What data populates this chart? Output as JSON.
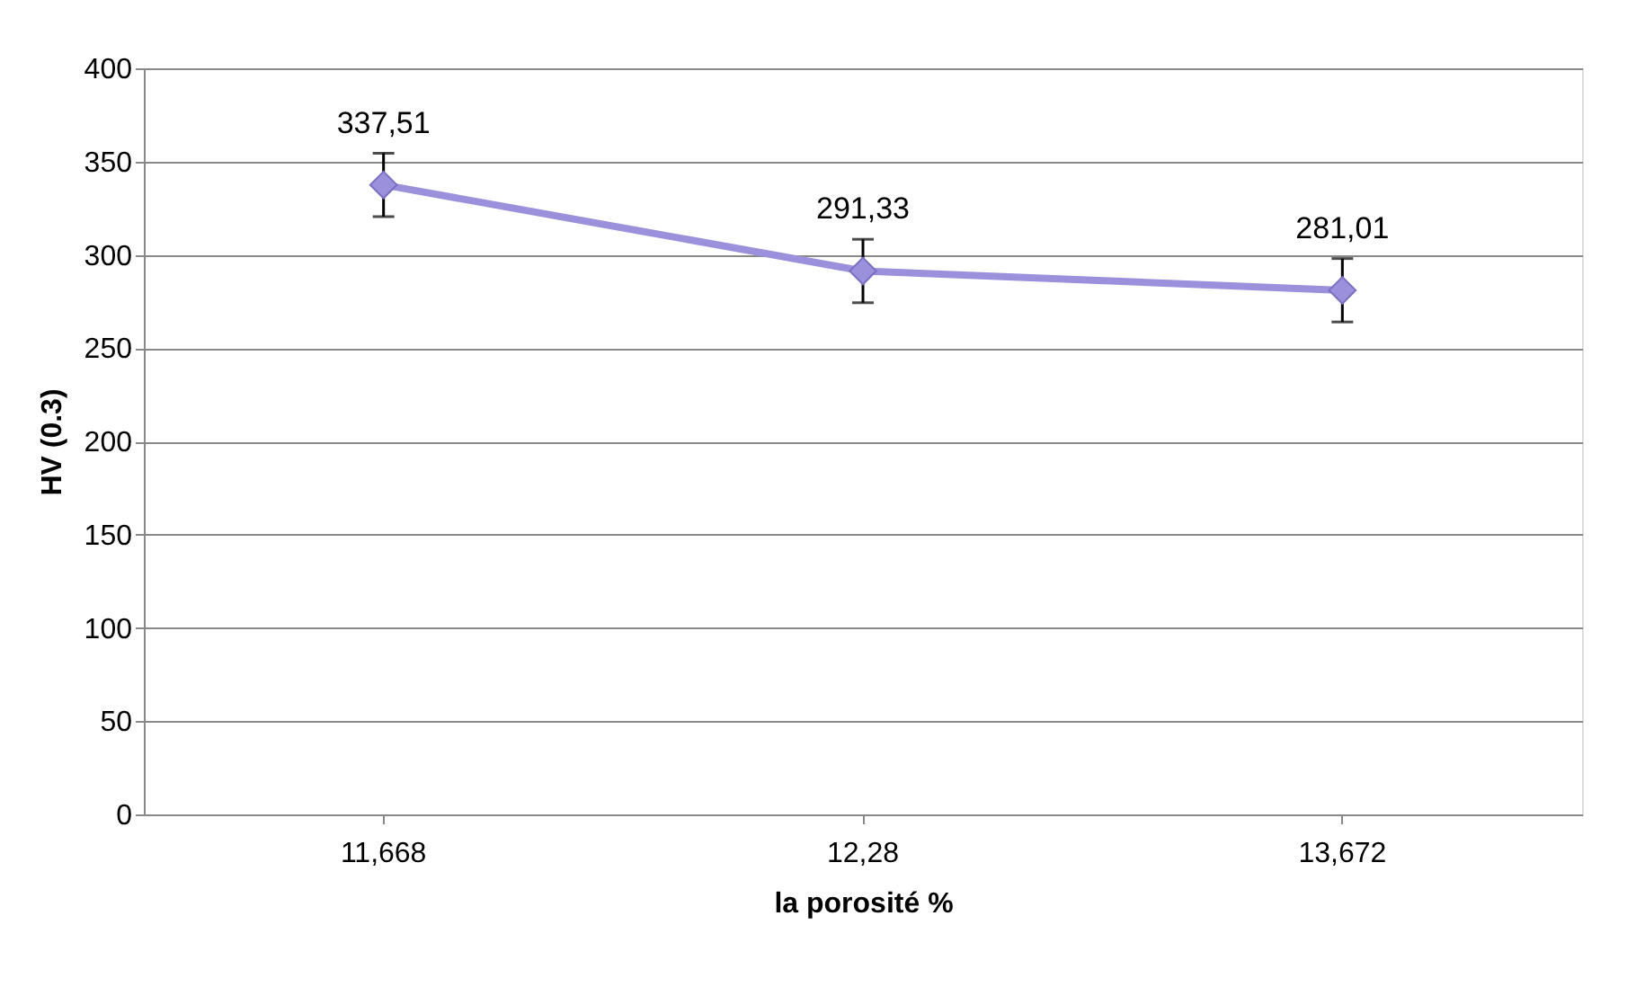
{
  "chart_data": {
    "type": "line",
    "xlabel": "la porosité %",
    "ylabel": "HV (0.3)",
    "categories": [
      "11,668",
      "12,28",
      "13,672"
    ],
    "series": [
      {
        "color": "#9a90dc",
        "values": [
          337.51,
          291.33,
          281.01
        ],
        "errors": [
          17,
          17,
          17
        ],
        "value_labels": [
          "337,51",
          "291,33",
          "281,01"
        ]
      }
    ],
    "ylim": [
      0,
      400
    ],
    "yticks": [
      0,
      50,
      100,
      150,
      200,
      250,
      300,
      350,
      400
    ],
    "grid": "y",
    "marker": "diamond",
    "line_style": "solid"
  }
}
